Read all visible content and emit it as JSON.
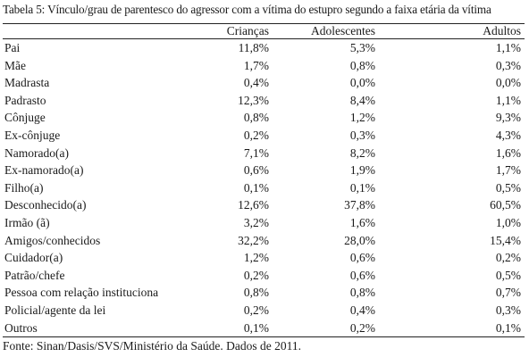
{
  "caption": "Tabela 5: Vínculo/grau de parentesco do agressor com a vítima do estupro segundo a faixa etária da vítima",
  "table": {
    "columns": [
      "",
      "Crianças",
      "Adolescentes",
      "Adultos"
    ],
    "rows": [
      {
        "label": "Pai",
        "criancas": "11,8%",
        "adolescentes": "5,3%",
        "adultos": "1,1%"
      },
      {
        "label": "Mãe",
        "criancas": "1,7%",
        "adolescentes": "0,8%",
        "adultos": "0,3%"
      },
      {
        "label": "Madrasta",
        "criancas": "0,4%",
        "adolescentes": "0,0%",
        "adultos": "0,0%"
      },
      {
        "label": "Padrasto",
        "criancas": "12,3%",
        "adolescentes": "8,4%",
        "adultos": "1,1%"
      },
      {
        "label": "Cônjuge",
        "criancas": "0,8%",
        "adolescentes": "1,2%",
        "adultos": "9,3%"
      },
      {
        "label": "Ex-cônjuge",
        "criancas": "0,2%",
        "adolescentes": "0,3%",
        "adultos": "4,3%"
      },
      {
        "label": "Namorado(a)",
        "criancas": "7,1%",
        "adolescentes": "8,2%",
        "adultos": "1,6%"
      },
      {
        "label": "Ex-namorado(a)",
        "criancas": "0,6%",
        "adolescentes": "1,9%",
        "adultos": "1,7%"
      },
      {
        "label": "Filho(a)",
        "criancas": "0,1%",
        "adolescentes": "0,1%",
        "adultos": "0,5%"
      },
      {
        "label": "Desconhecido(a)",
        "criancas": "12,6%",
        "adolescentes": "37,8%",
        "adultos": "60,5%"
      },
      {
        "label": "Irmão (ã)",
        "criancas": "3,2%",
        "adolescentes": "1,6%",
        "adultos": "1,0%"
      },
      {
        "label": "Amigos/conhecidos",
        "criancas": "32,2%",
        "adolescentes": "28,0%",
        "adultos": "15,4%"
      },
      {
        "label": "Cuidador(a)",
        "criancas": "1,2%",
        "adolescentes": "0,6%",
        "adultos": "0,2%"
      },
      {
        "label": "Patrão/chefe",
        "criancas": "0,2%",
        "adolescentes": "0,6%",
        "adultos": "0,5%"
      },
      {
        "label": "Pessoa com relação instituciona",
        "criancas": "0,8%",
        "adolescentes": "0,8%",
        "adultos": "0,7%"
      },
      {
        "label": "Policial/agente da lei",
        "criancas": "0,2%",
        "adolescentes": "0,4%",
        "adultos": "0,3%"
      },
      {
        "label": "Outros",
        "criancas": "0,1%",
        "adolescentes": "0,2%",
        "adultos": "0,1%"
      }
    ]
  },
  "footer": "Fonte: Sinan/Dasis/SVS/Ministério da Saúde. Dados de 2011."
}
